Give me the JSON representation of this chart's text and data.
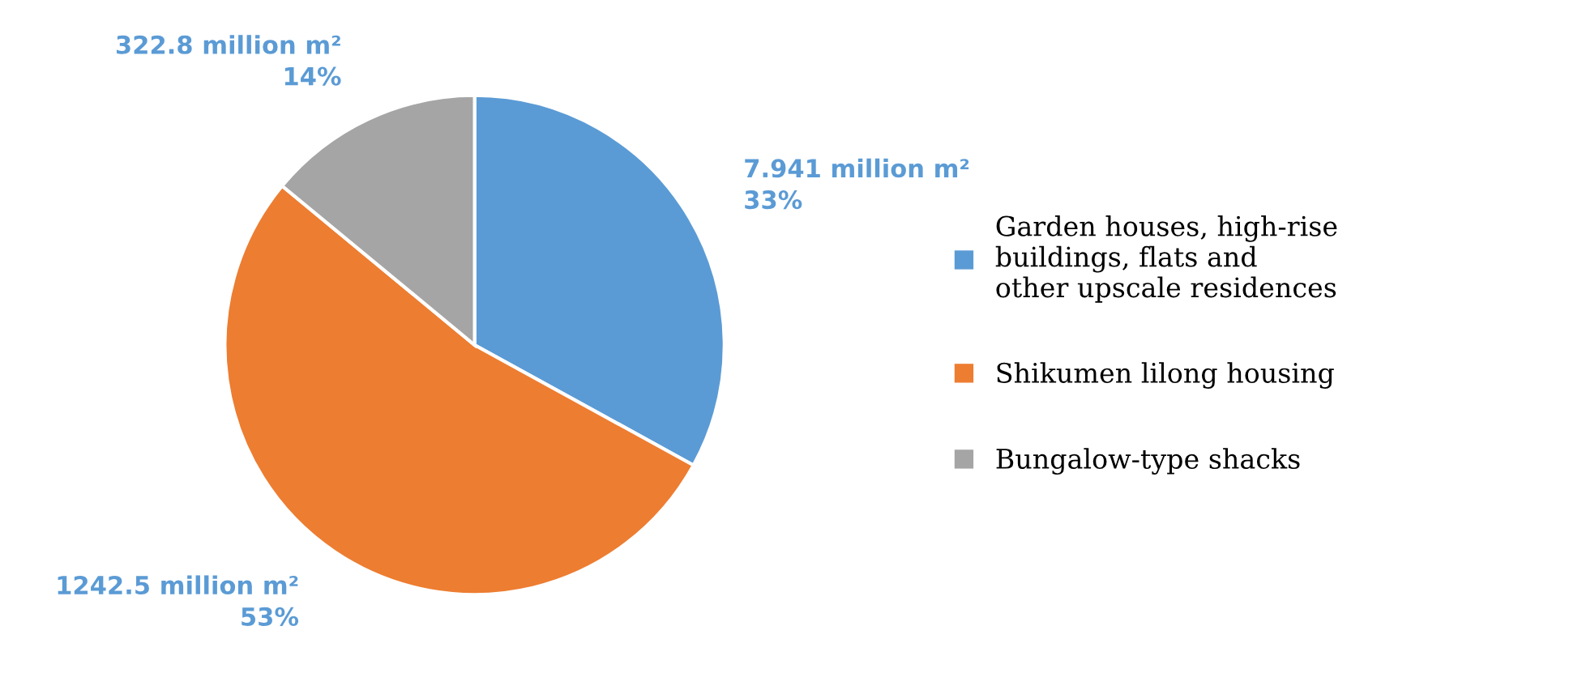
{
  "chart_data": {
    "type": "pie",
    "categories": [
      "Garden houses, high-rise buildings, flats and other upscale residences",
      "Shikumen lilong housing",
      "Bungalow-type shacks"
    ],
    "values": [
      33,
      53,
      14
    ],
    "colors": [
      "#5b9bd5",
      "#ed7d31",
      "#a5a5a5"
    ],
    "value_labels": [
      "7.941 million m²\n33%",
      "1242.5 million m²\n53%",
      "322.8 million m²\n14%"
    ],
    "legend": "right"
  }
}
